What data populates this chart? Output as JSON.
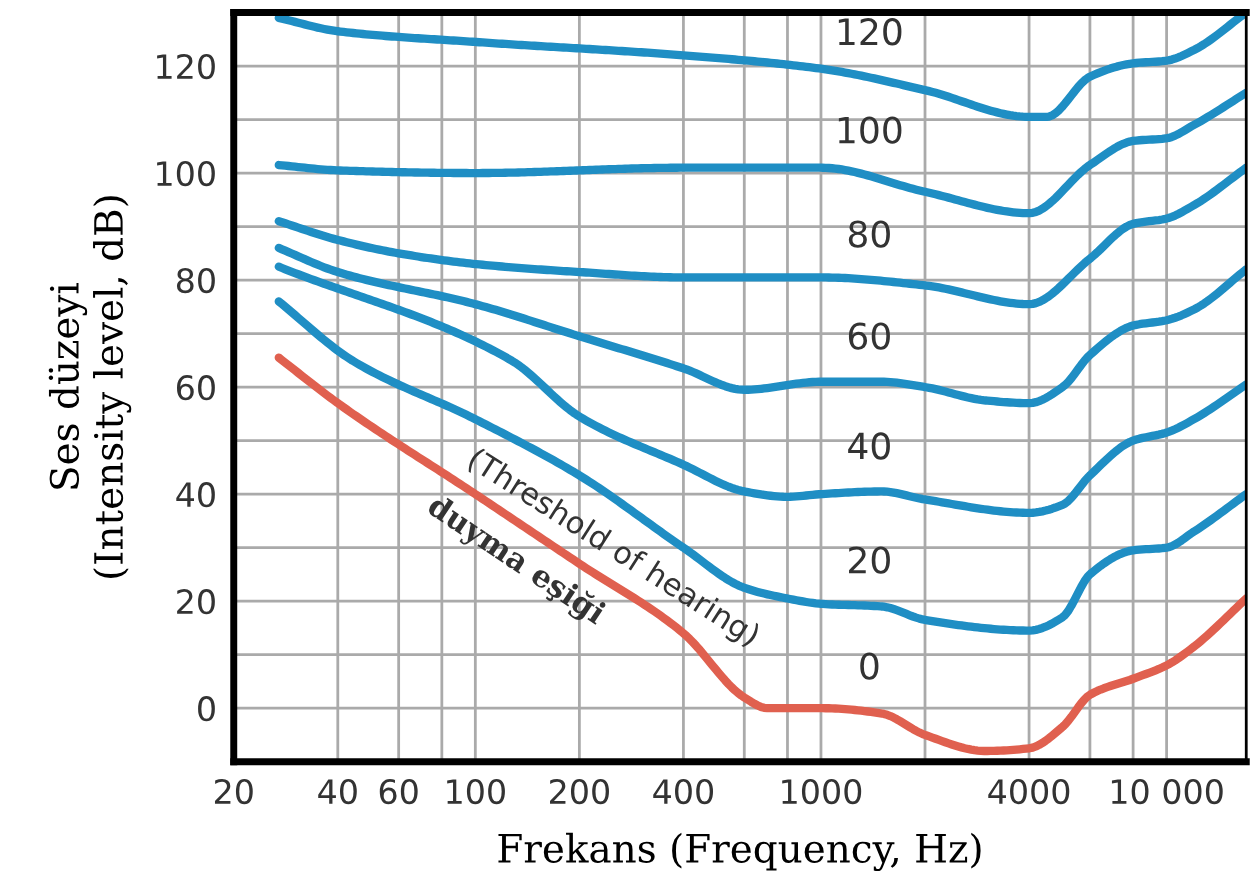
{
  "chart_data": {
    "type": "line",
    "xlabel": "Frekans (Frequency, Hz)",
    "ylabel": "Ses düzeyi\n(Intensity level, dB)",
    "log": "x",
    "grid": true,
    "legend": false,
    "marker": "none",
    "line_style": "solid",
    "xlim": [
      20,
      17000
    ],
    "xticks": [
      20,
      40,
      60,
      {
        "value": 80,
        "label": null
      },
      100,
      200,
      400,
      {
        "value": 600,
        "label": null
      },
      {
        "value": 800,
        "label": null
      },
      1000,
      {
        "value": 2000,
        "label": null
      },
      4000,
      {
        "value": 6000,
        "label": null
      },
      {
        "value": 8000,
        "label": null
      },
      {
        "value": 10000,
        "label": "10 000"
      }
    ],
    "ylim": [
      -10,
      130
    ],
    "yticks": [
      {
        "value": -10,
        "label": null
      },
      0,
      {
        "value": 10,
        "label": null
      },
      20,
      {
        "value": 30,
        "label": null
      },
      40,
      {
        "value": 50,
        "label": null
      },
      60,
      {
        "value": 70,
        "label": null
      },
      80,
      {
        "value": 90,
        "label": null
      },
      100,
      {
        "value": 110,
        "label": null
      },
      120,
      {
        "value": 130,
        "label": null
      }
    ],
    "series": [
      {
        "name": "120",
        "color": "#1f8ec4",
        "x": [
          27,
          40,
          100,
          400,
          1000,
          2000,
          4000,
          4500,
          6000,
          8000,
          10000,
          12000,
          17000
        ],
        "values": [
          129,
          126.5,
          124.5,
          122,
          119.5,
          115.5,
          110.5,
          110.5,
          118,
          120.5,
          121,
          123,
          130
        ]
      },
      {
        "name": "100",
        "color": "#1f8ec4",
        "x": [
          27,
          40,
          100,
          400,
          1000,
          2000,
          4000,
          6000,
          8000,
          10000,
          12000,
          17000
        ],
        "values": [
          101.5,
          100.5,
          100,
          101,
          101,
          96.5,
          92.5,
          101.5,
          106,
          106.5,
          109,
          115
        ]
      },
      {
        "name": "80",
        "color": "#1f8ec4",
        "x": [
          27,
          40,
          60,
          100,
          200,
          400,
          1000,
          2000,
          4000,
          6000,
          8000,
          10000,
          12000,
          17000
        ],
        "values": [
          91,
          87.5,
          85,
          83,
          81.5,
          80.5,
          80.5,
          79,
          75.5,
          84,
          90.5,
          91.5,
          94,
          101
        ]
      },
      {
        "name": "60",
        "color": "#1f8ec4",
        "x": [
          27,
          40,
          100,
          200,
          400,
          600,
          1000,
          1500,
          2000,
          3000,
          4000,
          5000,
          6000,
          8000,
          10000,
          12000,
          17000
        ],
        "values": [
          86,
          81.5,
          75.5,
          69.5,
          63.5,
          59.5,
          61,
          61,
          60,
          57.5,
          57,
          60,
          66,
          71.5,
          72.5,
          74.5,
          82
        ]
      },
      {
        "name": "40",
        "color": "#1f8ec4",
        "x": [
          27,
          127,
          200,
          400,
          600,
          800,
          1000,
          1500,
          2000,
          4000,
          5000,
          6000,
          8000,
          10000,
          12000,
          17000
        ],
        "values": [
          82.5,
          65,
          54.5,
          45.5,
          40.5,
          39.5,
          40,
          40.5,
          39,
          36.5,
          38,
          43.5,
          50,
          51.5,
          54,
          60.5
        ]
      },
      {
        "name": "20",
        "color": "#1f8ec4",
        "x": [
          27,
          44,
          100,
          200,
          400,
          600,
          800,
          1000,
          1500,
          2000,
          4000,
          5000,
          6000,
          8000,
          10000,
          12000,
          17000
        ],
        "values": [
          76,
          65,
          54,
          43.5,
          30,
          22.5,
          20.5,
          19.5,
          19,
          16.5,
          14.5,
          17,
          25,
          29.5,
          30,
          33,
          40
        ]
      },
      {
        "name": "0",
        "color": "#e0604f",
        "x": [
          27,
          40,
          100,
          200,
          400,
          600,
          700,
          1000,
          1500,
          2000,
          3000,
          4000,
          5000,
          6000,
          8000,
          10000,
          12000,
          17000
        ],
        "values": [
          65.5,
          57,
          40,
          27,
          14,
          2,
          0,
          0,
          -1,
          -5,
          -8,
          -7.5,
          -3.5,
          2.5,
          5.5,
          8,
          11.5,
          20.5
        ]
      }
    ],
    "annotations": [
      "(Threshold of hearing)",
      "duyma eşiği"
    ]
  }
}
